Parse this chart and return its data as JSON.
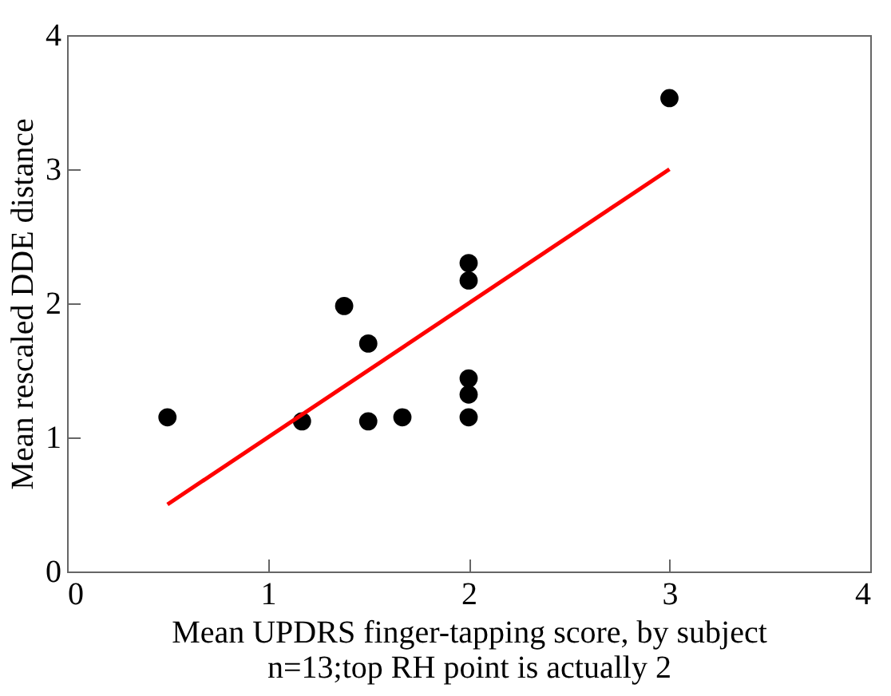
{
  "chart_data": {
    "type": "scatter",
    "xlabel": "Mean UPDRS finger-tapping score, by subject",
    "ylabel": "Mean rescaled DDE distance",
    "annotations": [
      "n=13;top RH point is actually 2"
    ],
    "xlim": [
      0,
      4
    ],
    "ylim": [
      0,
      4
    ],
    "xticks": [
      0,
      1,
      2,
      3,
      4
    ],
    "yticks": [
      0,
      1,
      2,
      3,
      4
    ],
    "grid": false,
    "series": [
      {
        "color": "#000000",
        "marker": "circle",
        "x": [
          0.5,
          1.17,
          1.38,
          1.5,
          1.5,
          1.67,
          2,
          2,
          2,
          2,
          2,
          3
        ],
        "values": [
          1.15,
          1.12,
          1.98,
          1.7,
          1.12,
          1.15,
          2.3,
          2.17,
          1.44,
          1.32,
          1.15,
          3.53
        ]
      },
      {
        "type": "line",
        "color": "#ff0000",
        "x": [
          0.5,
          3
        ],
        "values": [
          0.5,
          3
        ]
      }
    ]
  }
}
